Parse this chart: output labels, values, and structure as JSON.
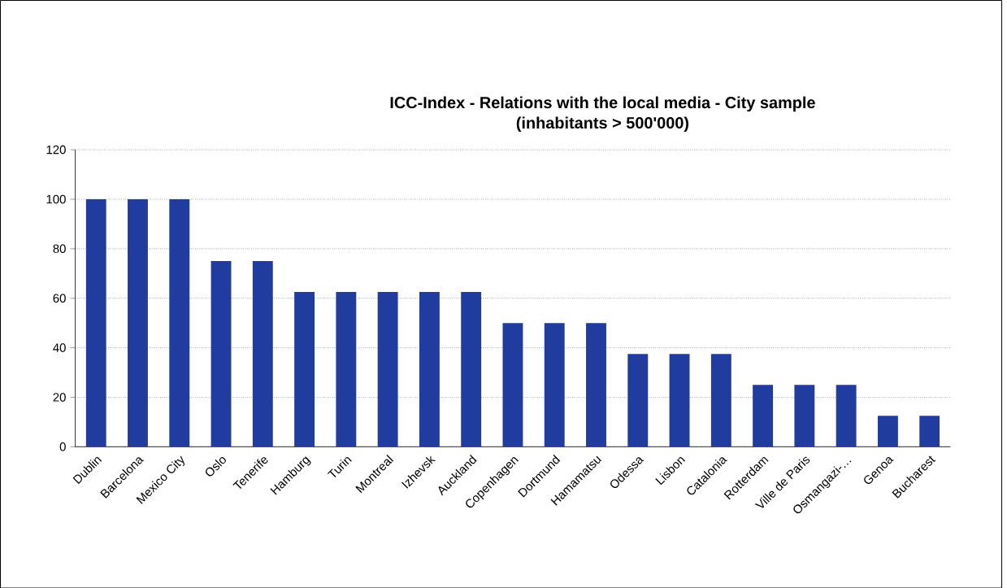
{
  "chart_data": {
    "type": "bar",
    "title": "ICC-Index - Relations with the local media - City sample\n(inhabitants > 500'000)",
    "categories": [
      "Dublin",
      "Barcelona",
      "Mexico City",
      "Oslo",
      "Tenerife",
      "Hamburg",
      "Turin",
      "Montreal",
      "Izhevsk",
      "Auckland",
      "Copenhagen",
      "Dortmund",
      "Hamamatsu",
      "Odessa",
      "Lisbon",
      "Catalonia",
      "Rotterdam",
      "Ville de Paris",
      "Osmangazi-…",
      "Genoa",
      "Bucharest"
    ],
    "values": [
      100,
      100,
      100,
      75,
      75,
      62.5,
      62.5,
      62.5,
      62.5,
      62.5,
      50,
      50,
      50,
      37.5,
      37.5,
      37.5,
      25,
      25,
      25,
      12.5,
      12.5
    ],
    "color": "#1f3c9e",
    "ylim": [
      0,
      120
    ],
    "yticks": [
      0,
      20,
      40,
      60,
      80,
      100,
      120
    ],
    "grid": "y"
  }
}
